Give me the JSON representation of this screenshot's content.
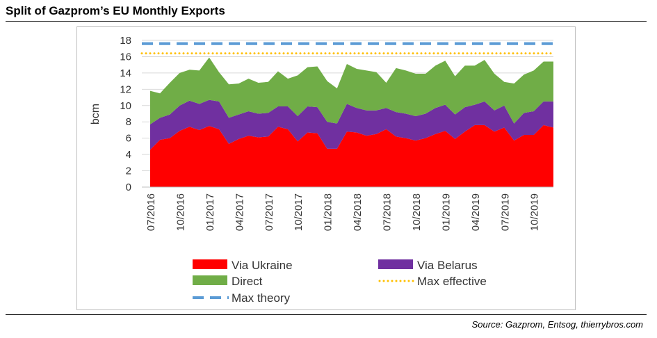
{
  "header": {
    "title": "Split of Gazprom’s EU Monthly Exports",
    "source": "Source: Gazprom, Entsog, thierrybros.com"
  },
  "chart_data": {
    "type": "area",
    "stacked": true,
    "ylabel": "bcm",
    "ylim": [
      0,
      18
    ],
    "yticks": [
      0,
      2,
      4,
      6,
      8,
      10,
      12,
      14,
      16,
      18
    ],
    "x": [
      "07/2016",
      "08/2016",
      "09/2016",
      "10/2016",
      "11/2016",
      "12/2016",
      "01/2017",
      "02/2017",
      "03/2017",
      "04/2017",
      "05/2017",
      "06/2017",
      "07/2017",
      "08/2017",
      "09/2017",
      "10/2017",
      "11/2017",
      "12/2017",
      "01/2018",
      "02/2018",
      "03/2018",
      "04/2018",
      "05/2018",
      "06/2018",
      "07/2018",
      "08/2018",
      "09/2018",
      "10/2018",
      "11/2018",
      "12/2018",
      "01/2019",
      "02/2019",
      "03/2019",
      "04/2019",
      "05/2019",
      "06/2019",
      "07/2019",
      "08/2019",
      "09/2019",
      "10/2019",
      "11/2019",
      "12/2019"
    ],
    "x_tick_labels": [
      "07/2016",
      "10/2016",
      "01/2017",
      "04/2017",
      "07/2017",
      "10/2017",
      "01/2018",
      "04/2018",
      "07/2018",
      "10/2018",
      "01/2019",
      "04/2019",
      "07/2019",
      "10/2019"
    ],
    "series": [
      {
        "name": "Via Ukraine",
        "color": "#ff0000",
        "values": [
          4.6,
          5.8,
          6.0,
          6.9,
          7.4,
          7.0,
          7.5,
          7.1,
          5.3,
          5.9,
          6.3,
          6.1,
          6.2,
          7.4,
          7.1,
          5.6,
          6.7,
          6.6,
          4.7,
          4.7,
          6.8,
          6.7,
          6.3,
          6.5,
          7.1,
          6.2,
          6.0,
          5.7,
          6.0,
          6.5,
          6.9,
          5.9,
          6.8,
          7.6,
          7.6,
          6.8,
          7.3,
          5.7,
          6.4,
          6.4,
          7.6,
          7.3
        ]
      },
      {
        "name": "Via Belarus",
        "color": "#7030a0",
        "values": [
          3.1,
          2.7,
          2.9,
          3.1,
          3.2,
          3.2,
          3.2,
          3.4,
          3.2,
          3.0,
          3.0,
          2.9,
          2.9,
          2.5,
          2.8,
          3.1,
          3.2,
          3.2,
          3.3,
          3.1,
          3.4,
          3.0,
          3.1,
          2.9,
          2.6,
          3.0,
          3.0,
          3.0,
          3.0,
          3.2,
          3.2,
          3.0,
          3.0,
          2.5,
          2.9,
          2.6,
          2.7,
          2.1,
          2.7,
          2.9,
          2.9,
          3.2
        ]
      },
      {
        "name": "Direct",
        "color": "#70ad47",
        "values": [
          4.1,
          3.0,
          3.9,
          4.0,
          3.8,
          4.1,
          5.2,
          3.6,
          4.1,
          3.8,
          4.0,
          3.8,
          3.8,
          4.3,
          3.4,
          5.0,
          4.8,
          5.0,
          5.0,
          4.3,
          4.9,
          4.8,
          4.9,
          4.7,
          3.1,
          5.4,
          5.3,
          5.2,
          4.9,
          5.2,
          5.4,
          4.7,
          5.1,
          4.8,
          5.1,
          4.5,
          2.9,
          4.9,
          4.7,
          5.0,
          4.9,
          4.9
        ]
      }
    ],
    "lines": [
      {
        "name": "Max effective",
        "value": 16.4,
        "color": "#ffc000",
        "style": "dotted"
      },
      {
        "name": "Max theory",
        "value": 17.6,
        "color": "#5b9bd5",
        "style": "dashed"
      }
    ],
    "grid": true,
    "legend_position": "bottom"
  }
}
